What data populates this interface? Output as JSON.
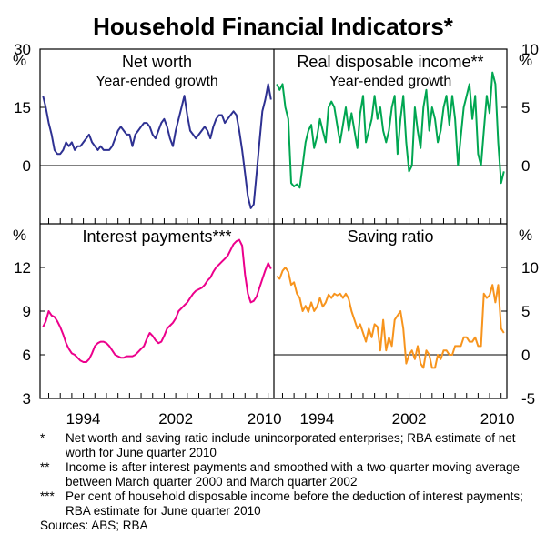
{
  "title": "Household Financial Indicators*",
  "chart_data": [
    {
      "type": "line",
      "title": "Net worth",
      "subtitle": "Year-ended growth",
      "unit_label": "%",
      "ylim": [
        -15,
        30
      ],
      "yticks": [
        "30",
        "15",
        "0"
      ],
      "color": "#2e3192",
      "x": [
        1990.5,
        1990.75,
        1991,
        1991.25,
        1991.5,
        1991.75,
        1992,
        1992.25,
        1992.5,
        1992.75,
        1993,
        1993.25,
        1993.5,
        1993.75,
        1994,
        1994.25,
        1994.5,
        1994.75,
        1995,
        1995.25,
        1995.5,
        1995.75,
        1996,
        1996.25,
        1996.5,
        1996.75,
        1997,
        1997.25,
        1997.5,
        1997.75,
        1998,
        1998.25,
        1998.5,
        1998.75,
        1999,
        1999.25,
        1999.5,
        1999.75,
        2000,
        2000.25,
        2000.5,
        2000.75,
        2001,
        2001.25,
        2001.5,
        2001.75,
        2002,
        2002.25,
        2002.5,
        2002.75,
        2003,
        2003.25,
        2003.5,
        2003.75,
        2004,
        2004.25,
        2004.5,
        2004.75,
        2005,
        2005.25,
        2005.5,
        2005.75,
        2006,
        2006.25,
        2006.5,
        2006.75,
        2007,
        2007.25,
        2007.5,
        2007.75,
        2008,
        2008.25,
        2008.5,
        2008.75,
        2009,
        2009.25,
        2009.5,
        2009.75,
        2010,
        2010.25
      ],
      "values": [
        18,
        15,
        11,
        8,
        4,
        3,
        3,
        4,
        6,
        5,
        6,
        4,
        5,
        5,
        6,
        7,
        8,
        6,
        5,
        4,
        5,
        4,
        4,
        4,
        5,
        7,
        9,
        10,
        9,
        8,
        8,
        5,
        8,
        9,
        10,
        11,
        11,
        10,
        8,
        7,
        9,
        11,
        12,
        10,
        7,
        5,
        9,
        12,
        15,
        18,
        13,
        9,
        8,
        7,
        8,
        9,
        10,
        9,
        7,
        10,
        12,
        13,
        13,
        11,
        12,
        13,
        14,
        13,
        9,
        4,
        -2,
        -8,
        -11,
        -10,
        -2,
        6,
        14,
        17,
        21,
        17
      ],
      "xlim": [
        1990.25,
        2010.5
      ]
    },
    {
      "type": "line",
      "title": "Real disposable income**",
      "subtitle": "Year-ended growth",
      "unit_label": "%",
      "ylim": [
        -5,
        10
      ],
      "yticks": [
        "10",
        "5",
        "0"
      ],
      "color": "#00a651",
      "x": [
        1990.5,
        1990.75,
        1991,
        1991.25,
        1991.5,
        1991.75,
        1992,
        1992.25,
        1992.5,
        1992.75,
        1993,
        1993.25,
        1993.5,
        1993.75,
        1994,
        1994.25,
        1994.5,
        1994.75,
        1995,
        1995.25,
        1995.5,
        1995.75,
        1996,
        1996.25,
        1996.5,
        1996.75,
        1997,
        1997.25,
        1997.5,
        1997.75,
        1998,
        1998.25,
        1998.5,
        1998.75,
        1999,
        1999.25,
        1999.5,
        1999.75,
        2000,
        2000.25,
        2000.5,
        2000.75,
        2001,
        2001.25,
        2001.5,
        2001.75,
        2002,
        2002.25,
        2002.5,
        2002.75,
        2003,
        2003.25,
        2003.5,
        2003.75,
        2004,
        2004.25,
        2004.5,
        2004.75,
        2005,
        2005.25,
        2005.5,
        2005.75,
        2006,
        2006.25,
        2006.5,
        2006.75,
        2007,
        2007.25,
        2007.5,
        2007.75,
        2008,
        2008.25,
        2008.5,
        2008.75,
        2009,
        2009.25,
        2009.5,
        2009.75,
        2010,
        2010.25
      ],
      "values": [
        7,
        6.5,
        7,
        5,
        4,
        -1.5,
        -1.8,
        -1.6,
        -1.9,
        0,
        2,
        3,
        3.5,
        1.5,
        2.5,
        4,
        3,
        2,
        5,
        5.5,
        5,
        3.5,
        2,
        3.5,
        5,
        3,
        4.5,
        3,
        1.5,
        4.5,
        6,
        2,
        3,
        4,
        6,
        4,
        5,
        3,
        2,
        3,
        5,
        6,
        1,
        4,
        6,
        2,
        -0.5,
        0,
        5,
        3,
        1.5,
        5,
        6.5,
        3,
        5,
        4,
        2,
        3,
        5,
        6,
        3.5,
        6,
        4,
        0,
        2.5,
        5,
        6,
        7,
        4,
        6,
        1,
        0,
        3,
        6,
        4.5,
        8,
        7,
        2,
        -1.5,
        -0.5
      ],
      "xlim": [
        1990.25,
        2010.5
      ]
    },
    {
      "type": "line",
      "title": "Interest payments***",
      "subtitle": "",
      "unit_label": "%",
      "ylim": [
        3,
        15
      ],
      "yticks": [
        "12",
        "9",
        "6",
        "3"
      ],
      "color": "#ec008c",
      "x": [
        1990.5,
        1990.75,
        1991,
        1991.25,
        1991.5,
        1991.75,
        1992,
        1992.25,
        1992.5,
        1992.75,
        1993,
        1993.25,
        1993.5,
        1993.75,
        1994,
        1994.25,
        1994.5,
        1994.75,
        1995,
        1995.25,
        1995.5,
        1995.75,
        1996,
        1996.25,
        1996.5,
        1996.75,
        1997,
        1997.25,
        1997.5,
        1997.75,
        1998,
        1998.25,
        1998.5,
        1998.75,
        1999,
        1999.25,
        1999.5,
        1999.75,
        2000,
        2000.25,
        2000.5,
        2000.75,
        2001,
        2001.25,
        2001.5,
        2001.75,
        2002,
        2002.25,
        2002.5,
        2002.75,
        2003,
        2003.25,
        2003.5,
        2003.75,
        2004,
        2004.25,
        2004.5,
        2004.75,
        2005,
        2005.25,
        2005.5,
        2005.75,
        2006,
        2006.25,
        2006.5,
        2006.75,
        2007,
        2007.25,
        2007.5,
        2007.75,
        2008,
        2008.25,
        2008.5,
        2008.75,
        2009,
        2009.25,
        2009.5,
        2009.75,
        2010,
        2010.25
      ],
      "values": [
        7.9,
        8.3,
        9,
        8.7,
        8.6,
        8.3,
        7.9,
        7.4,
        6.8,
        6.4,
        6.1,
        6.0,
        5.8,
        5.6,
        5.5,
        5.5,
        5.7,
        6.1,
        6.6,
        6.8,
        6.9,
        6.9,
        6.8,
        6.6,
        6.3,
        6.0,
        5.9,
        5.8,
        5.8,
        5.9,
        5.9,
        5.9,
        6.0,
        6.2,
        6.4,
        6.6,
        7.1,
        7.5,
        7.3,
        7.0,
        6.8,
        6.9,
        7.3,
        7.8,
        8.0,
        8.2,
        8.5,
        9.0,
        9.2,
        9.4,
        9.6,
        9.9,
        10.2,
        10.4,
        10.5,
        10.6,
        10.8,
        11.1,
        11.3,
        11.7,
        12.0,
        12.2,
        12.4,
        12.6,
        12.8,
        13.2,
        13.6,
        13.8,
        13.9,
        13.5,
        11.5,
        10.2,
        9.6,
        9.7,
        10.0,
        10.6,
        11.2,
        11.8,
        12.3,
        11.9
      ],
      "xlim": [
        1990.25,
        2010.5
      ]
    },
    {
      "type": "line",
      "title": "Saving ratio",
      "subtitle": "",
      "unit_label": "%",
      "ylim": [
        -5,
        15
      ],
      "yticks": [
        "10",
        "5",
        "0",
        "-5"
      ],
      "color": "#f7941d",
      "x": [
        1990.5,
        1990.75,
        1991,
        1991.25,
        1991.5,
        1991.75,
        1992,
        1992.25,
        1992.5,
        1992.75,
        1993,
        1993.25,
        1993.5,
        1993.75,
        1994,
        1994.25,
        1994.5,
        1994.75,
        1995,
        1995.25,
        1995.5,
        1995.75,
        1996,
        1996.25,
        1996.5,
        1996.75,
        1997,
        1997.25,
        1997.5,
        1997.75,
        1998,
        1998.25,
        1998.5,
        1998.75,
        1999,
        1999.25,
        1999.5,
        1999.75,
        2000,
        2000.25,
        2000.5,
        2000.75,
        2001,
        2001.25,
        2001.5,
        2001.75,
        2002,
        2002.25,
        2002.5,
        2002.75,
        2003,
        2003.25,
        2003.5,
        2003.75,
        2004,
        2004.25,
        2004.5,
        2004.75,
        2005,
        2005.25,
        2005.5,
        2005.75,
        2006,
        2006.25,
        2006.5,
        2006.75,
        2007,
        2007.25,
        2007.5,
        2007.75,
        2008,
        2008.25,
        2008.5,
        2008.75,
        2009,
        2009.25,
        2009.5,
        2009.75,
        2010,
        2010.25
      ],
      "values": [
        9,
        8.7,
        9.6,
        10,
        9.5,
        8,
        8.3,
        7,
        6.5,
        5,
        5.6,
        4.9,
        6,
        5,
        5.5,
        6.5,
        5.5,
        6,
        6.9,
        6.5,
        7,
        6.8,
        7,
        6.5,
        7,
        6.4,
        5,
        4,
        3,
        3.5,
        2.5,
        1.5,
        3,
        2,
        3.5,
        3.2,
        0.5,
        4,
        0.5,
        2,
        1,
        4,
        4.5,
        5,
        3,
        -1,
        0,
        0.5,
        -0.5,
        1,
        -1,
        -1.5,
        0.5,
        0,
        -1.5,
        -1.5,
        0,
        -0.5,
        0.5,
        0.5,
        0,
        0,
        1,
        1,
        1,
        2,
        2,
        1.5,
        1.5,
        2,
        1,
        1,
        7,
        6.5,
        6.8,
        8,
        6,
        8,
        3,
        2.5
      ],
      "xlim": [
        1990.25,
        2010.5
      ]
    }
  ],
  "x_axis_labels": [
    "1994",
    "2002",
    "2010",
    "1994",
    "2002",
    "2010"
  ],
  "notes": [
    {
      "marker": "*",
      "text": "Net worth and saving ratio include unincorporated enterprises; RBA estimate of net worth for June quarter 2010"
    },
    {
      "marker": "**",
      "text": "Income is after interest payments and smoothed with a two-quarter moving average between March quarter 2000 and March quarter 2002"
    },
    {
      "marker": "***",
      "text": "Per cent of household disposable income before the deduction of interest payments; RBA estimate for June quarter 2010"
    }
  ],
  "sources": "Sources: ABS; RBA"
}
